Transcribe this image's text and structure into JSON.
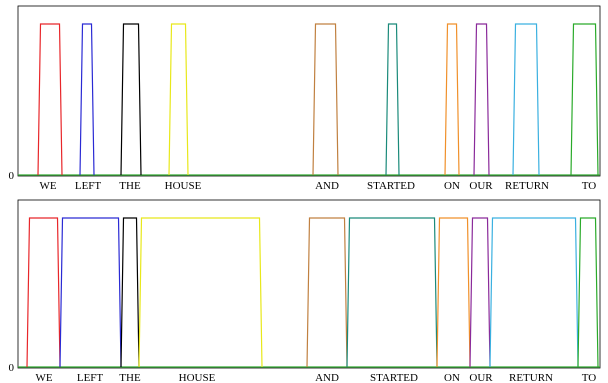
{
  "chart_data": [
    {
      "type": "line",
      "panel": "top",
      "ytick_labels": [
        "0"
      ],
      "ylim": [
        0,
        1
      ],
      "grid": false,
      "words": [
        "WE",
        "LEFT",
        "THE",
        "HOUSE",
        "AND",
        "STARTED",
        "ON",
        "OUR",
        "RETURN",
        "TO"
      ],
      "colors": [
        "#e8262a",
        "#2a2ad4",
        "#000000",
        "#e8e81a",
        "#c08040",
        "#1a8a7a",
        "#f0902a",
        "#8a2a9a",
        "#3ab0e0",
        "#2aaa2a"
      ],
      "segments": [
        {
          "word": "WE",
          "start": 0.05,
          "end": 0.12,
          "value": 1
        },
        {
          "word": "LEFT",
          "start": 0.15,
          "end": 0.19,
          "value": 1
        },
        {
          "word": "THE",
          "start": 0.23,
          "end": 0.29,
          "value": 1
        },
        {
          "word": "HOUSE",
          "start": 0.33,
          "end": 0.38,
          "value": 1
        },
        {
          "word": "AND",
          "start": 0.61,
          "end": 0.68,
          "value": 1
        },
        {
          "word": "STARTED",
          "start": 0.74,
          "end": 0.78,
          "value": 1
        },
        {
          "word": "ON",
          "start": 0.84,
          "end": 0.88,
          "value": 1
        },
        {
          "word": "OUR",
          "start": 0.9,
          "end": 0.94,
          "value": 1
        },
        {
          "word": "RETURN",
          "start": 0.97,
          "end": 1.05,
          "value": 1
        },
        {
          "word": "TO",
          "start": 1.08,
          "end": 1.16,
          "value": 1
        }
      ]
    },
    {
      "type": "line",
      "panel": "bottom",
      "ytick_labels": [
        "0"
      ],
      "ylim": [
        0,
        1
      ],
      "grid": false,
      "words": [
        "WE",
        "LEFT",
        "THE",
        "HOUSE",
        "AND",
        "STARTED",
        "ON",
        "OUR",
        "RETURN",
        "TO"
      ],
      "colors": [
        "#e8262a",
        "#2a2ad4",
        "#000000",
        "#e8e81a",
        "#c08040",
        "#1a8a7a",
        "#f0902a",
        "#8a2a9a",
        "#3ab0e0",
        "#2aaa2a"
      ],
      "segments": [
        {
          "word": "WE",
          "start": 0.0,
          "end": 0.11,
          "value": 1
        },
        {
          "word": "LEFT",
          "start": 0.11,
          "end": 0.27,
          "value": 1
        },
        {
          "word": "THE",
          "start": 0.27,
          "end": 0.31,
          "value": 1
        },
        {
          "word": "HOUSE",
          "start": 0.31,
          "end": 0.67,
          "value": 1
        },
        {
          "word": "AND",
          "start": 0.78,
          "end": 0.89,
          "value": 1
        },
        {
          "word": "STARTED",
          "start": 0.89,
          "end": 1.14,
          "value": 1
        },
        {
          "word": "ON",
          "start": 1.14,
          "end": 1.23,
          "value": 1
        },
        {
          "word": "OUR",
          "start": 1.23,
          "end": 1.28,
          "value": 1
        },
        {
          "word": "RETURN",
          "start": 1.28,
          "end": 1.53,
          "value": 1
        },
        {
          "word": "TO",
          "start": 1.53,
          "end": 1.58,
          "value": 1
        }
      ]
    }
  ]
}
